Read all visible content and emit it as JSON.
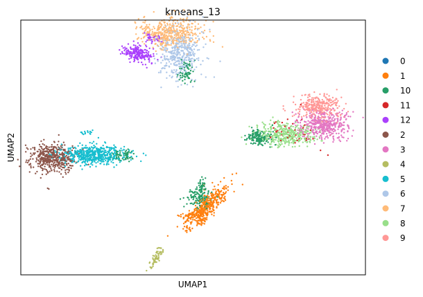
{
  "chart_data": {
    "type": "scatter",
    "title": "kmeans_13",
    "xlabel": "UMAP1",
    "ylabel": "UMAP2",
    "xticks": [],
    "yticks": [],
    "grid": false,
    "legend_placement": "right",
    "xlim": [
      0,
      100
    ],
    "ylim": [
      0,
      100
    ],
    "series": [
      {
        "name": "0",
        "color": "#1f77b4",
        "blobs": []
      },
      {
        "name": "1",
        "color": "#ff7f0e",
        "blobs": [
          {
            "x": 53.5,
            "y": 26,
            "sx": 1.4,
            "sy": 5,
            "rot": -35,
            "n": 420
          },
          {
            "x": 49.5,
            "y": 23,
            "sx": 1.8,
            "sy": 0.7,
            "rot": 0,
            "n": 40
          }
        ]
      },
      {
        "name": "10",
        "color": "#279e68",
        "blobs": [
          {
            "x": 69,
            "y": 54,
            "sx": 1.8,
            "sy": 1.6,
            "rot": 0,
            "n": 160
          },
          {
            "x": 51.5,
            "y": 30,
            "sx": 1.8,
            "sy": 1.6,
            "rot": 0,
            "n": 120
          },
          {
            "x": 52.5,
            "y": 34,
            "sx": 0.7,
            "sy": 2.0,
            "rot": 0,
            "n": 50
          },
          {
            "x": 48,
            "y": 80,
            "sx": 1.0,
            "sy": 2.5,
            "rot": 0,
            "n": 70
          },
          {
            "x": 30,
            "y": 47,
            "sx": 1.4,
            "sy": 1.1,
            "rot": 0,
            "n": 70
          }
        ]
      },
      {
        "name": "11",
        "color": "#d62728",
        "blobs": [
          {
            "x": 80,
            "y": 57,
            "sx": 4.5,
            "sy": 3.5,
            "rot": 0,
            "n": 45
          }
        ]
      },
      {
        "name": "12",
        "color": "#aa40fc",
        "blobs": [
          {
            "x": 34,
            "y": 87,
            "sx": 2.2,
            "sy": 1.6,
            "rot": -25,
            "n": 200
          },
          {
            "x": 38,
            "y": 93,
            "sx": 1.4,
            "sy": 1.2,
            "rot": 0,
            "n": 40
          }
        ]
      },
      {
        "name": "2",
        "color": "#8c564b",
        "blobs": [
          {
            "x": 9,
            "y": 46,
            "sx": 3.2,
            "sy": 3.0,
            "rot": 0,
            "n": 450
          }
        ]
      },
      {
        "name": "3",
        "color": "#e377c2",
        "blobs": [
          {
            "x": 88,
            "y": 59,
            "sx": 3.4,
            "sy": 2.7,
            "rot": 0,
            "n": 420
          }
        ]
      },
      {
        "name": "4",
        "color": "#b5bd61",
        "blobs": [
          {
            "x": 39.5,
            "y": 7,
            "sx": 0.6,
            "sy": 2.4,
            "rot": -25,
            "n": 60
          }
        ]
      },
      {
        "name": "5",
        "color": "#17becf",
        "blobs": [
          {
            "x": 21,
            "y": 47,
            "sx": 5.0,
            "sy": 1.8,
            "rot": 0,
            "n": 550
          },
          {
            "x": 19,
            "y": 56,
            "sx": 1.0,
            "sy": 0.4,
            "rot": 0,
            "n": 14
          }
        ]
      },
      {
        "name": "6",
        "color": "#aec7e8",
        "blobs": [
          {
            "x": 46,
            "y": 87,
            "sx": 3.0,
            "sy": 5.0,
            "rot": 0,
            "n": 420
          }
        ]
      },
      {
        "name": "7",
        "color": "#ffbb78",
        "blobs": [
          {
            "x": 43.5,
            "y": 95,
            "sx": 4.4,
            "sy": 3.0,
            "rot": 0,
            "n": 450
          }
        ]
      },
      {
        "name": "8",
        "color": "#98df8a",
        "blobs": [
          {
            "x": 77,
            "y": 55,
            "sx": 4.2,
            "sy": 2.3,
            "rot": 0,
            "n": 380
          }
        ]
      },
      {
        "name": "9",
        "color": "#ff9896",
        "blobs": [
          {
            "x": 86.5,
            "y": 66,
            "sx": 3.3,
            "sy": 2.4,
            "rot": 0,
            "n": 320
          }
        ]
      }
    ]
  }
}
